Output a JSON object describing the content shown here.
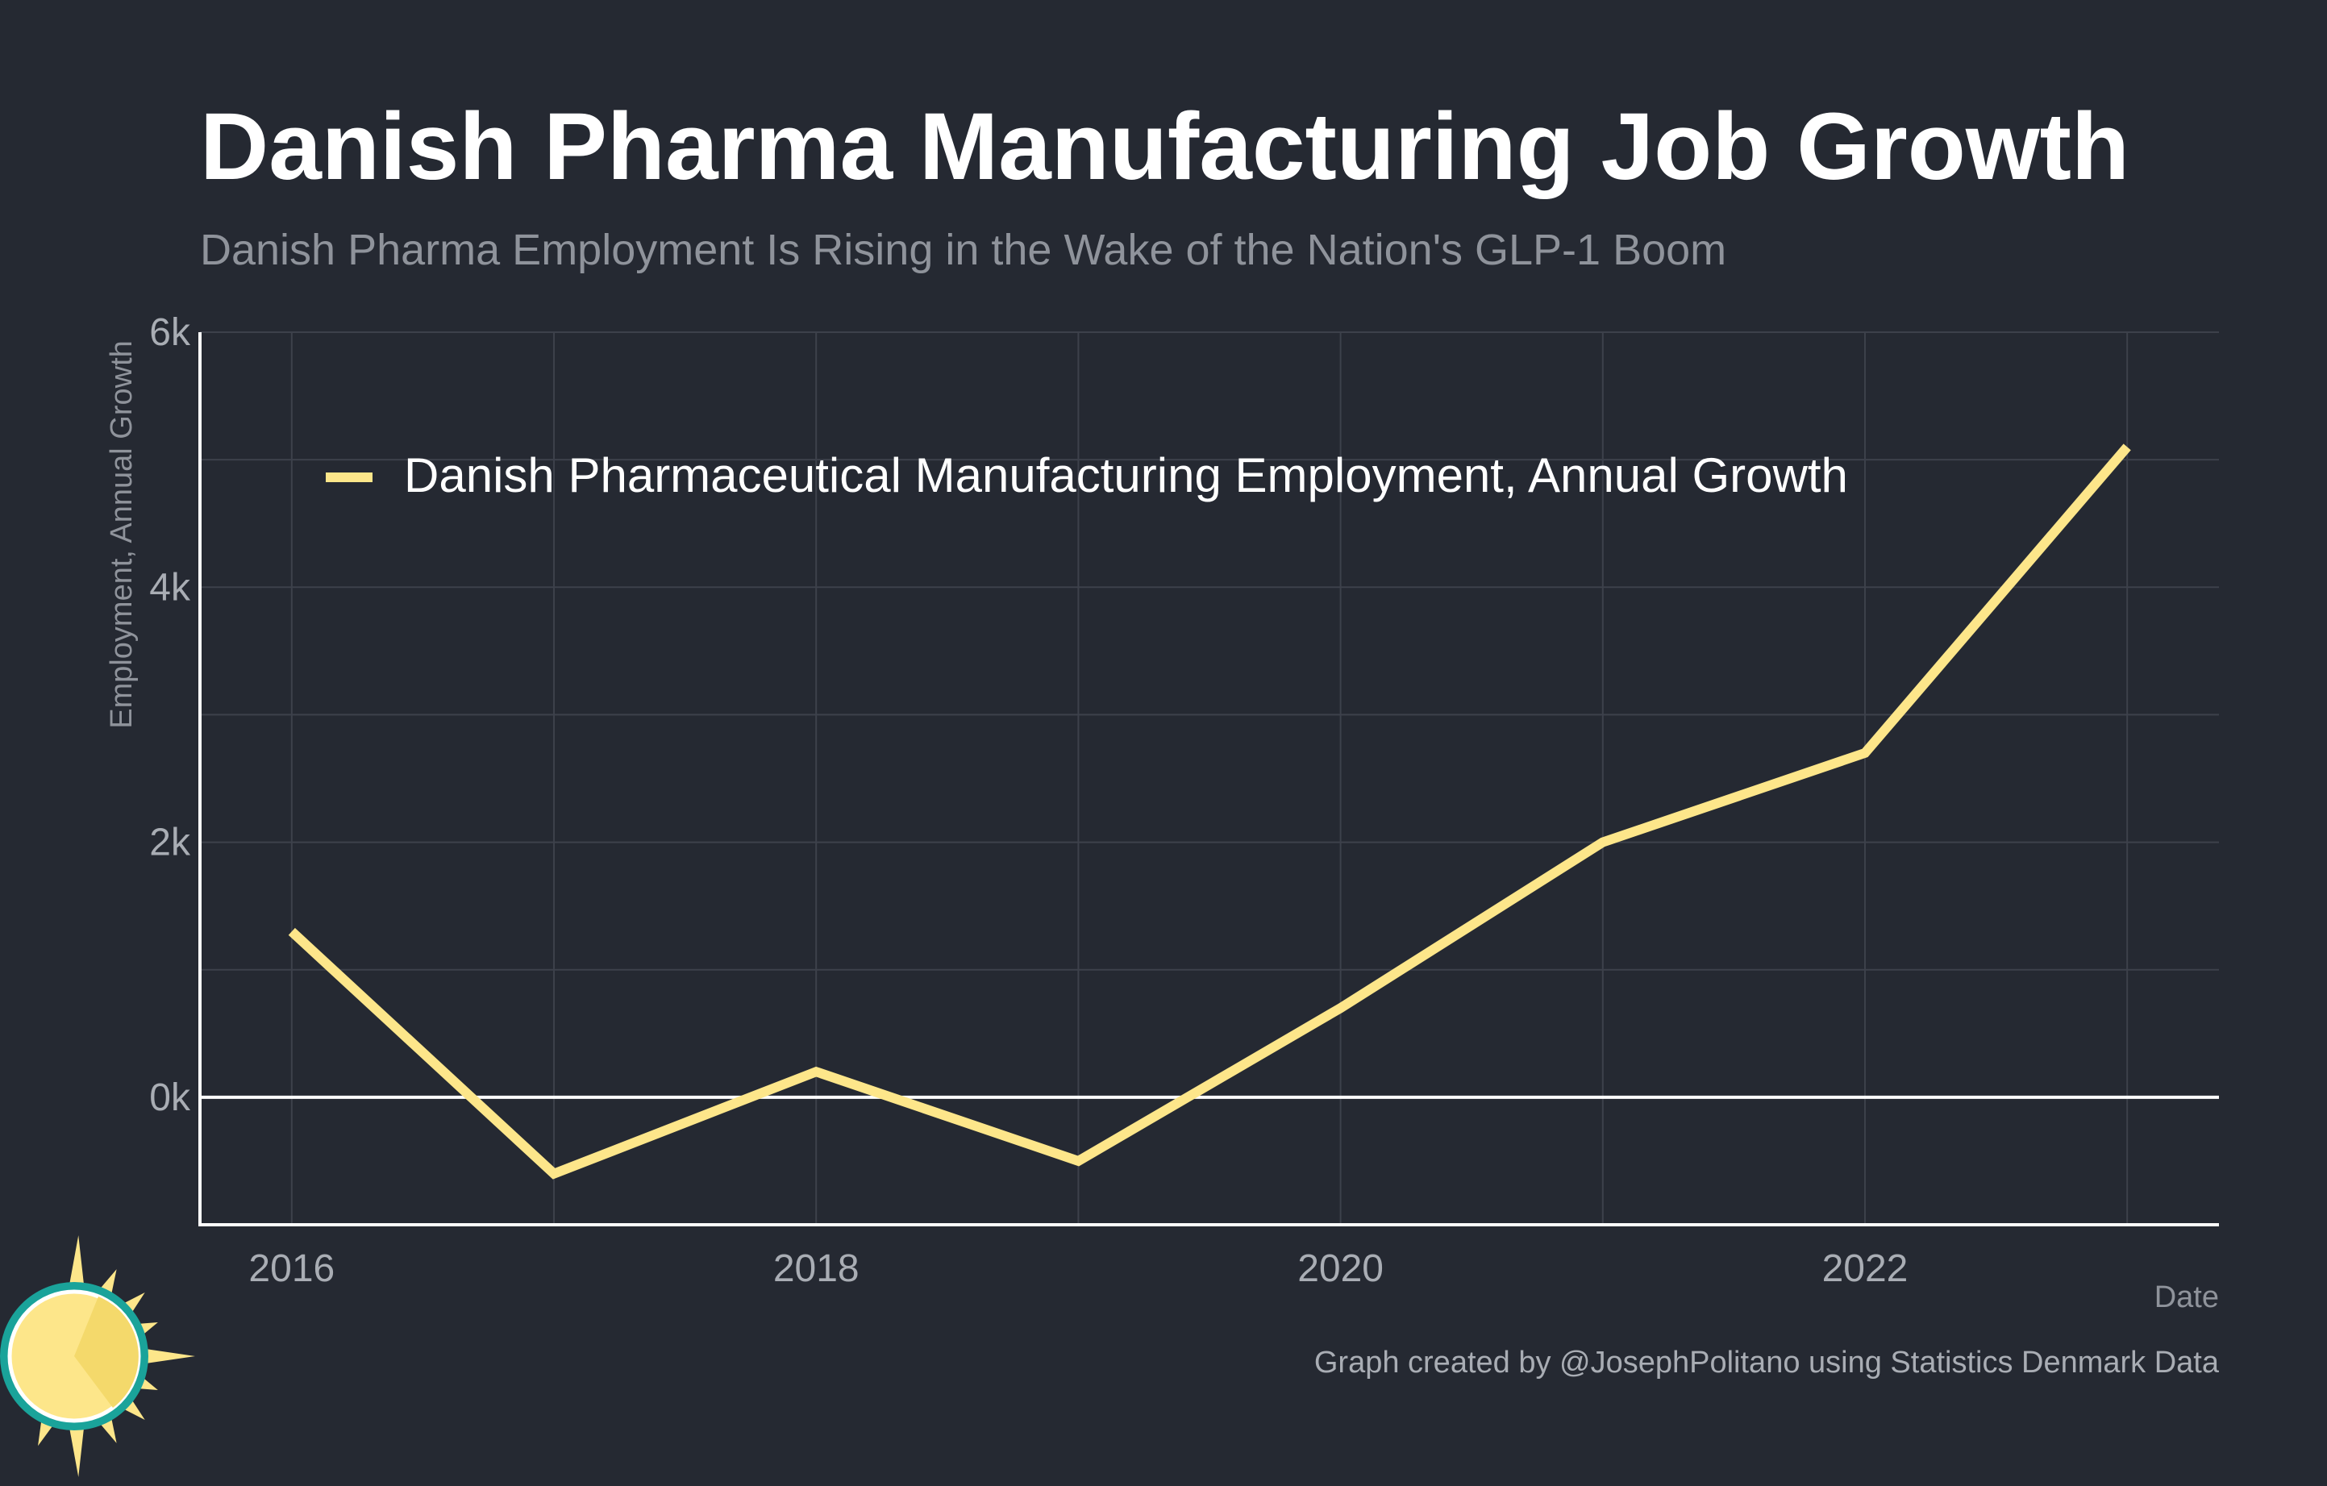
{
  "colors": {
    "background": "#252932",
    "series": "#fde68a",
    "grid": "#3d414b",
    "axis": "#ffffff",
    "logo_ring": "#1aa39a",
    "logo_sun": "#fde68a",
    "logo_sun_shade": "#f4d96b"
  },
  "chart_data": {
    "type": "line",
    "title": "Danish Pharma Manufacturing Job Growth",
    "subtitle": "Danish Pharma Employment Is Rising in the Wake of the Nation's GLP-1 Boom",
    "xlabel": "Date",
    "ylabel": "Employment, Annual Growth",
    "x_ticks": [
      "2016",
      "2018",
      "2020",
      "2022"
    ],
    "y_ticks": [
      {
        "value": 0,
        "label": "0k"
      },
      {
        "value": 2000,
        "label": "2k"
      },
      {
        "value": 4000,
        "label": "4k"
      },
      {
        "value": 6000,
        "label": "6k"
      }
    ],
    "xlim": [
      2015.65,
      2023.35
    ],
    "ylim": [
      -1000,
      6000
    ],
    "grid": true,
    "legend_position": "top-left",
    "series": [
      {
        "name": "Danish Pharmaceutical Manufacturing Employment, Annual Growth",
        "x": [
          2016,
          2017,
          2018,
          2019,
          2020,
          2021,
          2022,
          2023
        ],
        "y": [
          1300,
          -600,
          200,
          -500,
          700,
          2000,
          2700,
          5100
        ]
      }
    ],
    "caption": "Graph created by @JosephPolitano using Statistics Denmark Data"
  }
}
